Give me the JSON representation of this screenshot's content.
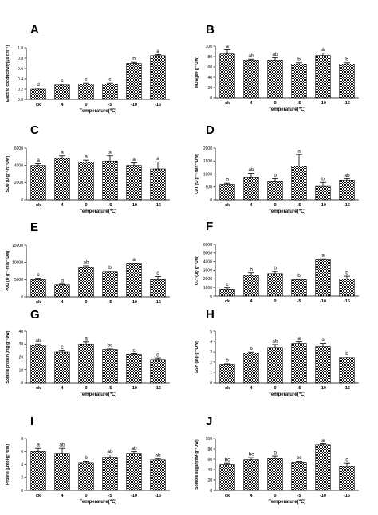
{
  "figure": {
    "categories": [
      "ck",
      "4",
      "0",
      "-5",
      "-10",
      "-15"
    ],
    "xlabel": "Temperature(℃)"
  },
  "chart_data": [
    {
      "panel": "A",
      "type": "bar",
      "categories": [
        "ck",
        "4",
        "0",
        "-5",
        "-10",
        "-15"
      ],
      "values": [
        0.2,
        0.28,
        0.3,
        0.3,
        0.7,
        0.85
      ],
      "errors": [
        0.02,
        0.02,
        0.02,
        0.02,
        0.02,
        0.02
      ],
      "letters": [
        "d",
        "c",
        "c",
        "c",
        "b",
        "a"
      ],
      "ylabel": "Electric conductivity(μs·cm⁻¹)",
      "xlabel": "Temperature(℃)",
      "ylim": [
        0,
        1.0
      ],
      "yticks": [
        "0.0",
        "0.2",
        "0.4",
        "0.6",
        "0.8",
        "1.0"
      ]
    },
    {
      "panel": "B",
      "type": "bar",
      "categories": [
        "ck",
        "4",
        "0",
        "-5",
        "-10",
        "-15"
      ],
      "values": [
        85,
        72,
        72,
        65,
        82,
        65
      ],
      "errors": [
        8,
        3,
        6,
        3,
        5,
        3
      ],
      "letters": [
        "a",
        "ab",
        "ab",
        "b",
        "a",
        "b"
      ],
      "ylabel": "MDA(μM·g⁻¹DW)",
      "xlabel": "Temperature(℃)",
      "ylim": [
        0,
        100
      ],
      "yticks": [
        "0",
        "20",
        "40",
        "60",
        "80",
        "100"
      ]
    },
    {
      "panel": "C",
      "type": "bar",
      "categories": [
        "ck",
        "4",
        "0",
        "-5",
        "-10",
        "-15"
      ],
      "values": [
        4000,
        4800,
        4400,
        4500,
        4000,
        3600
      ],
      "errors": [
        200,
        300,
        200,
        600,
        300,
        800
      ],
      "letters": [
        "a",
        "a",
        "a",
        "a",
        "a",
        "a"
      ],
      "ylabel": "SOD (U·g⁻¹·h⁻¹DW)",
      "xlabel": "Temperature(℃)",
      "ylim": [
        0,
        6000
      ],
      "yticks": [
        "0",
        "2000",
        "4000",
        "6000"
      ]
    },
    {
      "panel": "D",
      "type": "bar",
      "categories": [
        "ck",
        "4",
        "0",
        "-5",
        "-10",
        "-15"
      ],
      "values": [
        600,
        880,
        700,
        1300,
        520,
        760
      ],
      "errors": [
        40,
        150,
        120,
        450,
        150,
        60
      ],
      "letters": [
        "b",
        "ab",
        "b",
        "a",
        "b",
        "ab"
      ],
      "ylabel": "CAT (U·g⁻¹·min⁻¹DW)",
      "xlabel": "Temperature(℃)",
      "ylim": [
        0,
        2000
      ],
      "yticks": [
        "0",
        "500",
        "1000",
        "1500",
        "2000"
      ]
    },
    {
      "panel": "E",
      "type": "bar",
      "categories": [
        "ck",
        "4",
        "0",
        "-5",
        "-10",
        "-15"
      ],
      "values": [
        5000,
        3500,
        8500,
        7200,
        9600,
        5000
      ],
      "errors": [
        400,
        200,
        500,
        300,
        200,
        900
      ],
      "letters": [
        "c",
        "d",
        "ab",
        "b",
        "a",
        "c"
      ],
      "ylabel": "POD (U·g⁻¹·min⁻¹DW)",
      "xlabel": "",
      "ylim": [
        0,
        15000
      ],
      "yticks": [
        "0",
        "5000",
        "10000",
        "15000"
      ]
    },
    {
      "panel": "F",
      "type": "bar",
      "categories": [
        "ck",
        "4",
        "0",
        "-5",
        "-10",
        "-15"
      ],
      "values": [
        800,
        2400,
        2600,
        1900,
        4200,
        2000
      ],
      "errors": [
        150,
        300,
        250,
        100,
        120,
        300
      ],
      "letters": [
        "c",
        "b",
        "b",
        "b",
        "a",
        "b"
      ],
      "ylabel": "O₂⁻·(μg·g⁻¹DW)",
      "xlabel": "",
      "ylim": [
        0,
        6000
      ],
      "yticks": [
        "0",
        "1000",
        "2000",
        "3000",
        "4000",
        "5000",
        "6000"
      ]
    },
    {
      "panel": "G",
      "type": "bar",
      "categories": [
        "ck",
        "4",
        "0",
        "-5",
        "-10",
        "-15"
      ],
      "values": [
        29,
        24,
        30,
        25.5,
        22,
        18
      ],
      "errors": [
        1,
        1,
        1.5,
        1,
        0.5,
        1
      ],
      "letters": [
        "ab",
        "c",
        "a",
        "bc",
        "c",
        "d"
      ],
      "ylabel": "Soluble protein (mg·g⁻¹DW)",
      "xlabel": "Temperature(℃)",
      "ylim": [
        0,
        40
      ],
      "yticks": [
        "0",
        "10",
        "20",
        "30",
        "40"
      ]
    },
    {
      "panel": "H",
      "type": "bar",
      "categories": [
        "ck",
        "4",
        "0",
        "-5",
        "-10",
        "-15"
      ],
      "values": [
        1.8,
        2.9,
        3.4,
        3.8,
        3.5,
        2.4
      ],
      "errors": [
        0.05,
        0.08,
        0.3,
        0.15,
        0.3,
        0.1
      ],
      "letters": [
        "b",
        "b",
        "ab",
        "a",
        "a",
        "b"
      ],
      "ylabel": "GSH (mg·g⁻¹DW)",
      "xlabel": "Temperature(℃)",
      "ylim": [
        0,
        5
      ],
      "yticks": [
        "0",
        "1",
        "2",
        "3",
        "4",
        "5"
      ]
    },
    {
      "panel": "I",
      "type": "bar",
      "categories": [
        "ck",
        "4",
        "0",
        "-5",
        "-10",
        "-15"
      ],
      "values": [
        6,
        5.7,
        4.2,
        5.1,
        5.7,
        4.7
      ],
      "errors": [
        0.5,
        0.8,
        0.3,
        0.4,
        0.3,
        0.2
      ],
      "letters": [
        "a",
        "ab",
        "b",
        "ab",
        "ab",
        "ab"
      ],
      "ylabel": "Proline (μmol·g⁻¹DW)",
      "xlabel": "Temperature(℃)",
      "ylim": [
        0,
        8
      ],
      "yticks": [
        "0",
        "2",
        "4",
        "6",
        "8"
      ]
    },
    {
      "panel": "J",
      "type": "bar",
      "categories": [
        "ck",
        "4",
        "0",
        "-5",
        "-10",
        "-15"
      ],
      "values": [
        50,
        59,
        61,
        53,
        88,
        46
      ],
      "errors": [
        2,
        4,
        5,
        3,
        2,
        6
      ],
      "letters": [
        "bc",
        "bc",
        "b",
        "bc",
        "a",
        "c"
      ],
      "ylabel": "Soluble sugar(mM·g⁻¹DW)",
      "xlabel": "Temperature(℃)",
      "ylim": [
        0,
        100
      ],
      "yticks": [
        "0",
        "20",
        "40",
        "60",
        "80",
        "100"
      ]
    }
  ]
}
